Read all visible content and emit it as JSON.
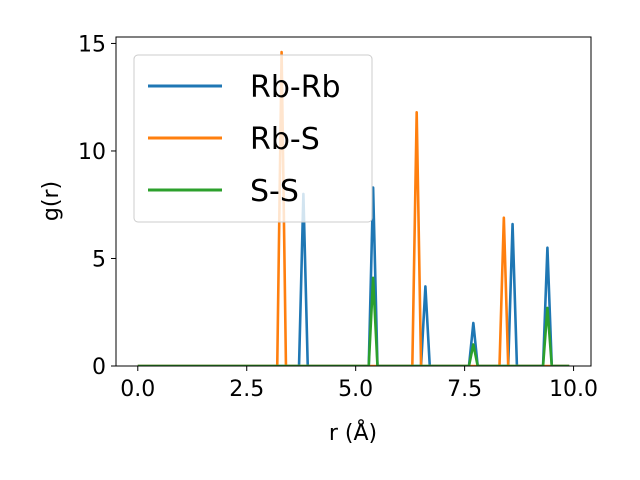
{
  "chart_data": {
    "type": "line",
    "xlabel": "r (Å)",
    "ylabel": "g(r)",
    "xlim": [
      -0.5,
      10.4
    ],
    "ylim": [
      0,
      15.3
    ],
    "xticks": [
      0.0,
      2.5,
      5.0,
      7.5,
      10.0
    ],
    "xtick_labels": [
      "0.0",
      "2.5",
      "5.0",
      "7.5",
      "10.0"
    ],
    "yticks": [
      0,
      5,
      10,
      15
    ],
    "ytick_labels": [
      "0",
      "5",
      "10",
      "15"
    ],
    "grid": false,
    "legend_position": "upper-left",
    "step": 0.1,
    "x_range": [
      0.0,
      9.9
    ],
    "series": [
      {
        "name": "Rb-Rb",
        "color": "#1f77b4",
        "peaks": [
          [
            3.8,
            8.0
          ],
          [
            5.4,
            8.3
          ],
          [
            6.6,
            3.7
          ],
          [
            7.7,
            2.0
          ],
          [
            8.6,
            6.6
          ],
          [
            9.4,
            5.5
          ]
        ]
      },
      {
        "name": "Rb-S",
        "color": "#ff7f0e",
        "peaks": [
          [
            3.3,
            14.6
          ],
          [
            6.4,
            11.8
          ],
          [
            8.4,
            6.9
          ]
        ]
      },
      {
        "name": "S-S",
        "color": "#2ca02c",
        "peaks": [
          [
            5.4,
            4.1
          ],
          [
            7.7,
            1.0
          ],
          [
            9.4,
            2.7
          ]
        ]
      }
    ]
  }
}
